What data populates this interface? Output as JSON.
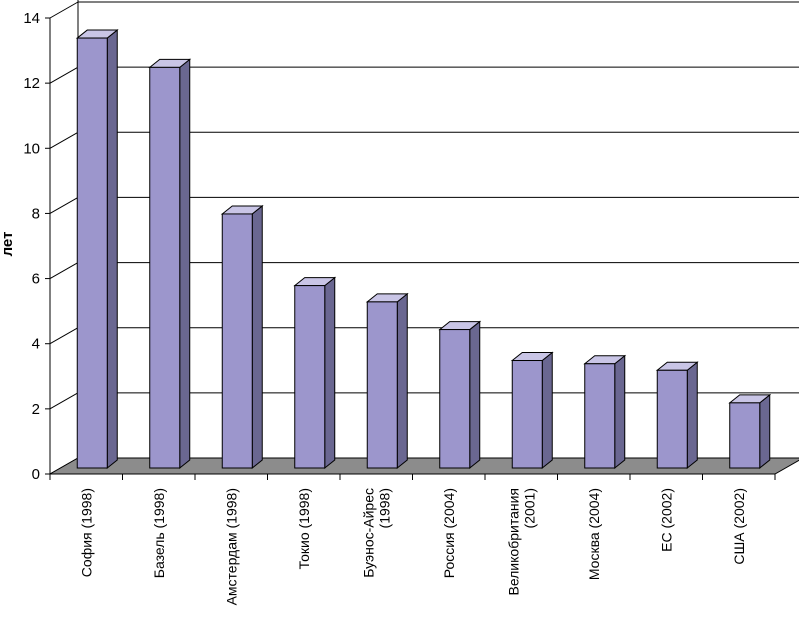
{
  "chart_data": {
    "type": "bar",
    "style": "3d-column",
    "ylabel": "лет",
    "xlabel": "",
    "ylim": [
      0,
      14
    ],
    "yticks": [
      0,
      2,
      4,
      6,
      8,
      10,
      12,
      14
    ],
    "grid": true,
    "categories": [
      "София (1998)",
      "Базель (1998)",
      "Амстердам (1998)",
      "Токио (1998)",
      "Буэнос-Айрес (1998)",
      "Россия (2004)",
      "Великобритания (2001)",
      "Москва (2004)",
      "ЕС (2002)",
      "США (2002)"
    ],
    "category_label_lines": [
      [
        "София (1998)"
      ],
      [
        "Базель (1998)"
      ],
      [
        "Амстердам (1998)"
      ],
      [
        "Токио (1998)"
      ],
      [
        "Буэнос-Айрес",
        "(1998)"
      ],
      [
        "Россия (2004)"
      ],
      [
        "Великобритания",
        "(2001)"
      ],
      [
        "Москва (2004)"
      ],
      [
        "ЕС (2002)"
      ],
      [
        "США (2002)"
      ]
    ],
    "values": [
      13.2,
      12.3,
      7.8,
      5.6,
      5.1,
      4.25,
      3.3,
      3.2,
      3.0,
      2.0
    ],
    "colors": {
      "bar_front": "#9c96cc",
      "bar_side": "#6a6791",
      "bar_top": "#c9c5e6",
      "floor": "#8c8c8c",
      "grid": "#000000",
      "axis": "#000000"
    }
  }
}
